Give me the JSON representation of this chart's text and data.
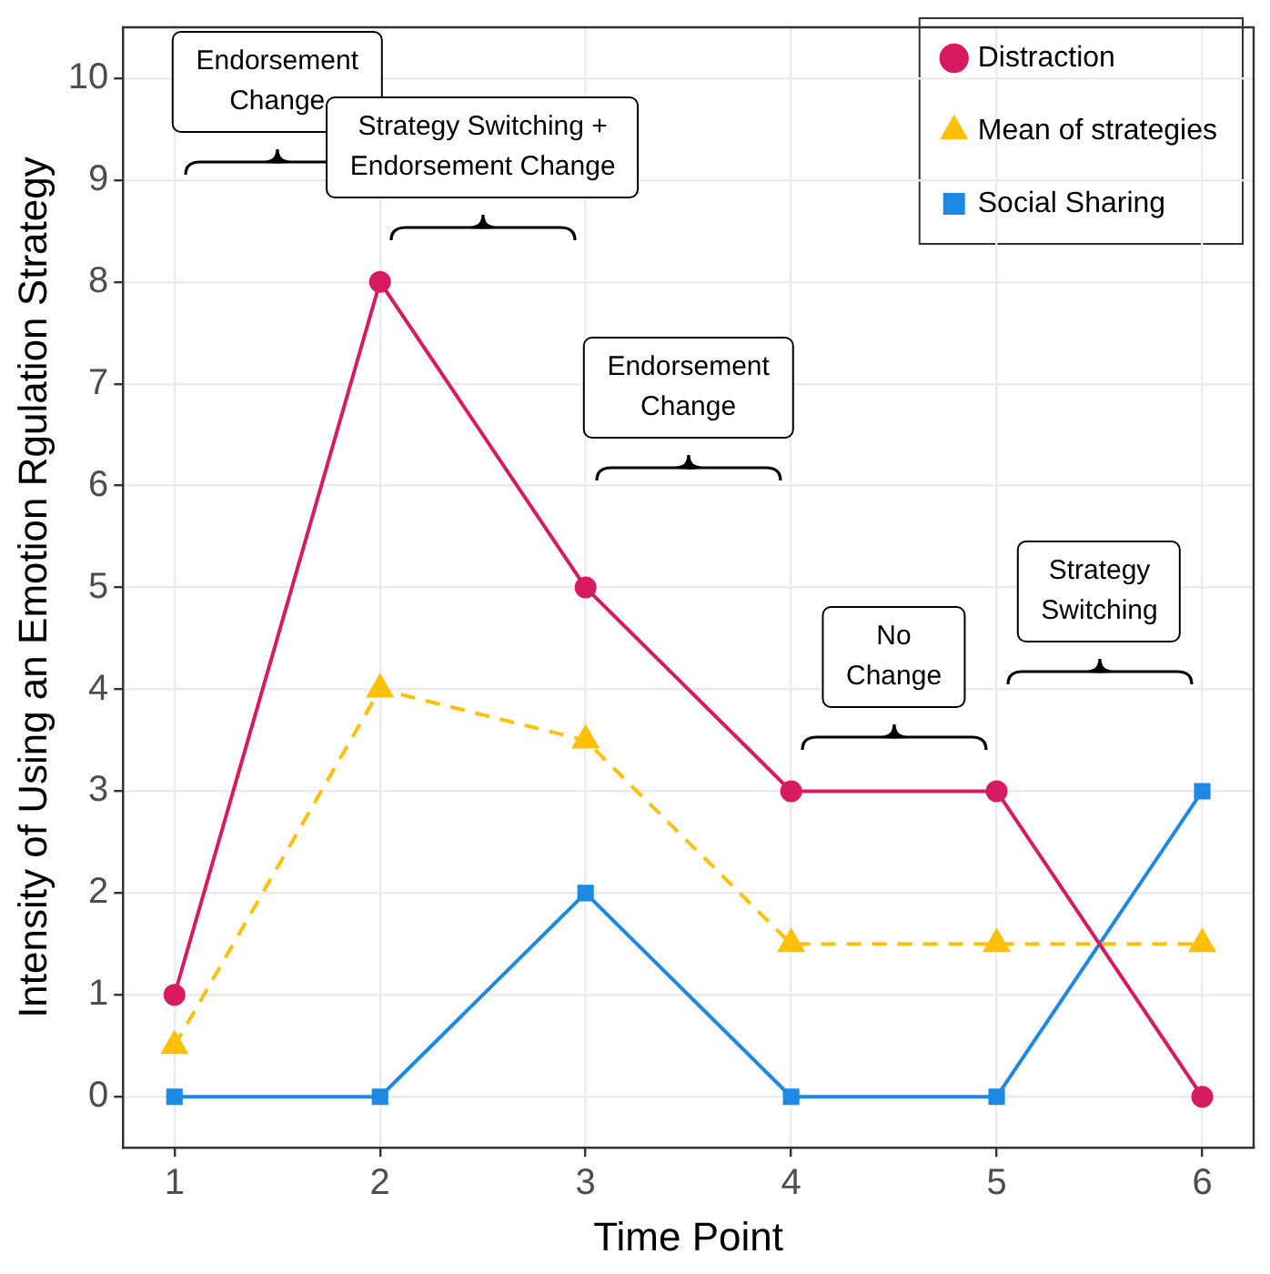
{
  "chart_data": {
    "type": "line",
    "x": [
      1,
      2,
      3,
      4,
      5,
      6
    ],
    "series": [
      {
        "name": "Distraction",
        "color": "#d81b60",
        "marker": "circle",
        "line_style": "solid",
        "values": [
          1,
          8,
          5,
          3,
          3,
          0
        ]
      },
      {
        "name": "Mean of strategies",
        "color": "#ffc107",
        "marker": "triangle",
        "line_style": "dashed",
        "values": [
          0.5,
          4,
          3.5,
          1.5,
          1.5,
          1.5
        ]
      },
      {
        "name": "Social Sharing",
        "color": "#1e88e5",
        "marker": "square",
        "line_style": "solid",
        "values": [
          0,
          0,
          2,
          0,
          0,
          3
        ]
      }
    ],
    "xlabel": "Time Point",
    "ylabel": "Intensity of Using an Emotion Rgulation Strategy",
    "xlim": [
      0.75,
      6.25
    ],
    "xticks": [
      1,
      2,
      3,
      4,
      5,
      6
    ],
    "ylim": [
      -0.5,
      10.5
    ],
    "yticks": [
      0,
      1,
      2,
      3,
      4,
      5,
      6,
      7,
      8,
      9,
      10
    ],
    "grid": true,
    "legend": "top right",
    "annotations": [
      "Endorsement\nChange",
      "Strategy Switching +\nEndorsement Change",
      "Endorsement\nChange",
      "No\nChange",
      "Strategy\nSwitching"
    ]
  }
}
